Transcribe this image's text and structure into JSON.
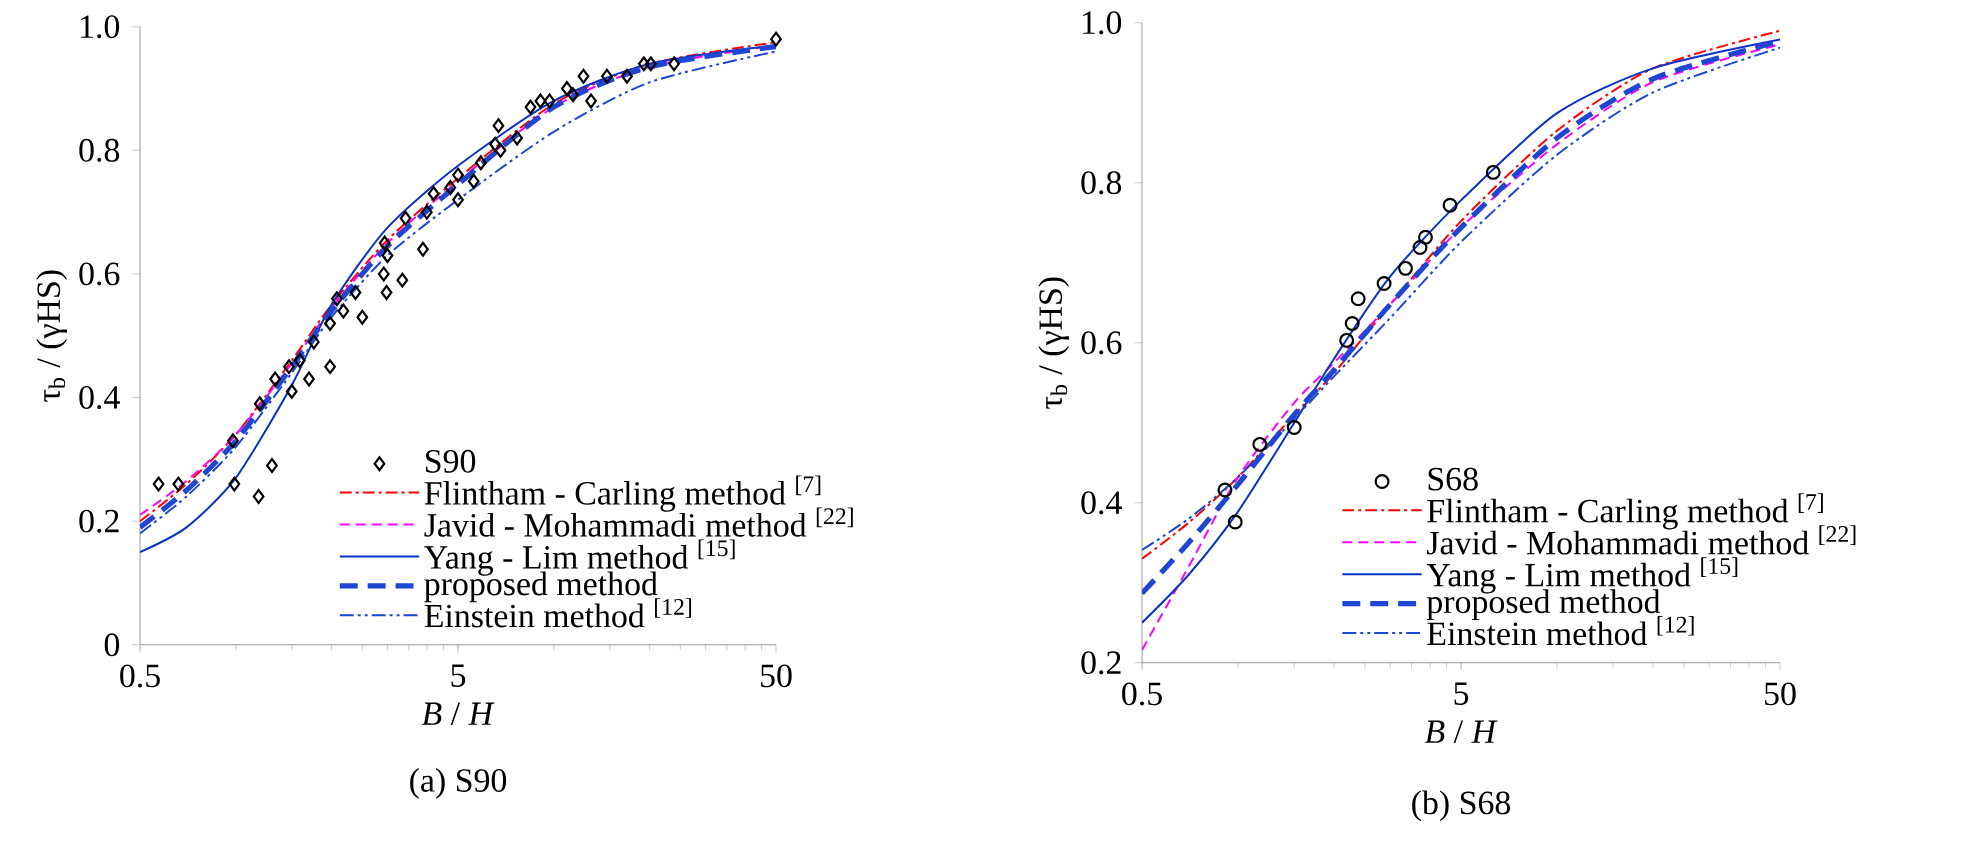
{
  "chart_data": [
    {
      "type": "line",
      "title": "(a) S90",
      "xlabel": "*B* / *H*",
      "ylabel": "τ$_{b}$ / (γHS)",
      "log": "x",
      "xlim": [
        0.5,
        50
      ],
      "xticks": [
        0.5,
        5,
        50
      ],
      "ylim": [
        0,
        1
      ],
      "yticks": [
        0,
        0.2,
        0.4,
        0.6,
        0.8,
        {
          "value": 1,
          "label": "1.0"
        }
      ],
      "legend": "bottom right",
      "grid": false,
      "x": [
        0.5,
        0.7,
        1,
        1.5,
        2,
        3,
        5,
        10,
        20,
        50
      ],
      "series": [
        {
          "name": "S90",
          "type": "scatter",
          "marker": "diamond",
          "color": "#000000",
          "x": [
            0.572,
            0.66,
            0.98,
            0.99,
            1.19,
            1.18,
            1.3,
            1.33,
            1.47,
            1.5,
            1.59,
            1.7,
            1.76,
            1.98,
            1.98,
            2.08,
            2.18,
            2.38,
            2.5,
            2.92,
            2.94,
            2.98,
            3.0,
            3.34,
            3.42,
            3.88,
            3.99,
            4.19,
            4.73,
            5.0,
            5.0,
            5.6,
            5.9,
            6.54,
            6.7,
            6.8,
            7.67,
            8.45,
            9.08,
            9.7,
            11.0,
            11.5,
            12.4,
            13.1,
            14.7,
            17.0,
            19.2,
            20.2,
            23.9,
            50
          ],
          "values": [
            0.26,
            0.26,
            0.33,
            0.26,
            0.39,
            0.24,
            0.29,
            0.43,
            0.45,
            0.41,
            0.46,
            0.43,
            0.49,
            0.45,
            0.52,
            0.56,
            0.54,
            0.57,
            0.53,
            0.6,
            0.65,
            0.57,
            0.63,
            0.59,
            0.69,
            0.64,
            0.7,
            0.73,
            0.74,
            0.72,
            0.76,
            0.75,
            0.78,
            0.81,
            0.84,
            0.8,
            0.82,
            0.87,
            0.88,
            0.88,
            0.9,
            0.89,
            0.92,
            0.88,
            0.92,
            0.92,
            0.94,
            0.94,
            0.94,
            0.98
          ]
        },
        {
          "name": "Flintham - Carling method $^{[7]}$",
          "color": "#ff0000",
          "line_style": "dashdot",
          "marker": "none",
          "values": [
            0.2,
            0.26,
            0.34,
            0.46,
            0.55,
            0.655,
            0.755,
            0.875,
            0.94,
            0.975
          ]
        },
        {
          "name": "Javid - Mohammadi method $^{[22]}$",
          "color": "#ff00ff",
          "line_style": "dashed",
          "marker": "none",
          "values": [
            0.21,
            0.265,
            0.34,
            0.455,
            0.545,
            0.65,
            0.75,
            0.87,
            0.935,
            0.97
          ]
        },
        {
          "name": "Yang - Lim method $^{[15]}$",
          "color": "#0a32c8",
          "line_style": "solid",
          "marker": "none",
          "values": [
            0.15,
            0.19,
            0.27,
            0.42,
            0.55,
            0.675,
            0.775,
            0.88,
            0.94,
            0.97
          ]
        },
        {
          "name": "proposed method",
          "color": "#1e46d2",
          "line_style": "loosely dashed",
          "marker": "none",
          "values": [
            0.19,
            0.25,
            0.33,
            0.45,
            0.54,
            0.645,
            0.745,
            0.87,
            0.935,
            0.968
          ]
        },
        {
          "name": "Einstein method $^{[12]}$",
          "color": "#1e46d2",
          "line_style": "dashdotdot",
          "marker": "none",
          "values": [
            0.18,
            0.24,
            0.32,
            0.44,
            0.53,
            0.63,
            0.72,
            0.83,
            0.91,
            0.96
          ]
        }
      ]
    },
    {
      "type": "line",
      "title": "(b) S68",
      "xlabel": "*B* / *H*",
      "ylabel": "τ$_{b}$ / (γHS)",
      "log": "x",
      "xlim": [
        0.5,
        50
      ],
      "xticks": [
        0.5,
        5,
        50
      ],
      "ylim": [
        0.2,
        1
      ],
      "yticks": [
        0.2,
        0.4,
        0.6,
        0.8,
        {
          "value": 1,
          "label": "1.0"
        }
      ],
      "legend": "bottom right",
      "grid": false,
      "x": [
        0.5,
        0.7,
        1,
        1.5,
        2,
        3,
        5,
        10,
        20,
        50
      ],
      "series": [
        {
          "name": "S68",
          "type": "scatter",
          "marker": "circle",
          "color": "#000000",
          "x": [
            0.91,
            0.98,
            1.17,
            1.5,
            2.19,
            2.28,
            2.38,
            2.87,
            3.35,
            3.72,
            3.87,
            4.62,
            6.31
          ],
          "values": [
            0.416,
            0.376,
            0.473,
            0.494,
            0.603,
            0.624,
            0.655,
            0.674,
            0.693,
            0.719,
            0.732,
            0.772,
            0.813
          ]
        },
        {
          "name": "Flintham - Carling method $^{[7]}$",
          "color": "#ff0000",
          "line_style": "dashdot",
          "marker": "none",
          "values": [
            0.33,
            0.375,
            0.432,
            0.51,
            0.562,
            0.648,
            0.752,
            0.865,
            0.943,
            0.99
          ]
        },
        {
          "name": "Javid - Mohammadi method $^{[22]}$",
          "color": "#ff00ff",
          "line_style": "dashed",
          "marker": "none",
          "values": [
            0.216,
            0.32,
            0.432,
            0.525,
            0.575,
            0.648,
            0.744,
            0.848,
            0.926,
            0.973
          ]
        },
        {
          "name": "Yang - Lim method $^{[15]}$",
          "color": "#0a32c8",
          "line_style": "solid",
          "marker": "none",
          "values": [
            0.25,
            0.31,
            0.389,
            0.5,
            0.58,
            0.683,
            0.778,
            0.887,
            0.943,
            0.979
          ]
        },
        {
          "name": "proposed method",
          "color": "#1e46d2",
          "line_style": "loosely dashed",
          "marker": "none",
          "values": [
            0.287,
            0.35,
            0.423,
            0.51,
            0.566,
            0.648,
            0.744,
            0.856,
            0.93,
            0.977
          ]
        },
        {
          "name": "Einstein method $^{[12]}$",
          "color": "#1e46d2",
          "line_style": "dashdotdot",
          "marker": "none",
          "values": [
            0.341,
            0.38,
            0.432,
            0.505,
            0.558,
            0.631,
            0.726,
            0.835,
            0.913,
            0.969
          ]
        }
      ]
    }
  ]
}
